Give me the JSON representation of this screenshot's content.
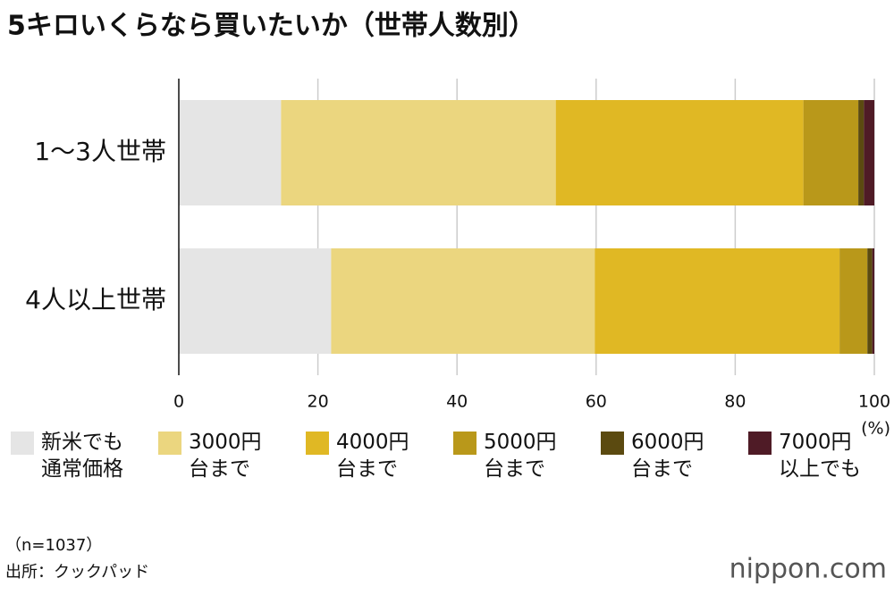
{
  "chart_data": {
    "type": "stacked-barh",
    "title": "5キロいくらなら買いたいか（世帯人数別）",
    "x_label": "(%)",
    "categories": [
      "1〜3人世帯",
      "4人以上世帯"
    ],
    "series": [
      {
        "name": "新米でも\n通常価格",
        "color": "#e5e5e5",
        "values": [
          14.7,
          21.9
        ]
      },
      {
        "name": "3000円\n台まで",
        "color": "#ebd67f",
        "values": [
          39.5,
          37.9
        ]
      },
      {
        "name": "4000円\n台まで",
        "color": "#e0b824",
        "values": [
          35.6,
          35.2
        ]
      },
      {
        "name": "5000円\n台まで",
        "color": "#b9981a",
        "values": [
          7.9,
          4.0
        ]
      },
      {
        "name": "6000円\n台まで",
        "color": "#5b4a10",
        "values": [
          0.8,
          0.7
        ]
      },
      {
        "name": "7000円\n以上でも",
        "color": "#4f1b26",
        "values": [
          1.5,
          0.3
        ]
      }
    ],
    "xlim": [
      0,
      100
    ],
    "xticks": [
      0,
      20,
      40,
      60,
      80,
      100
    ],
    "grid": true,
    "note": "（n=1037）",
    "source": "出所：クックパッド",
    "logo": "nippon.com"
  }
}
